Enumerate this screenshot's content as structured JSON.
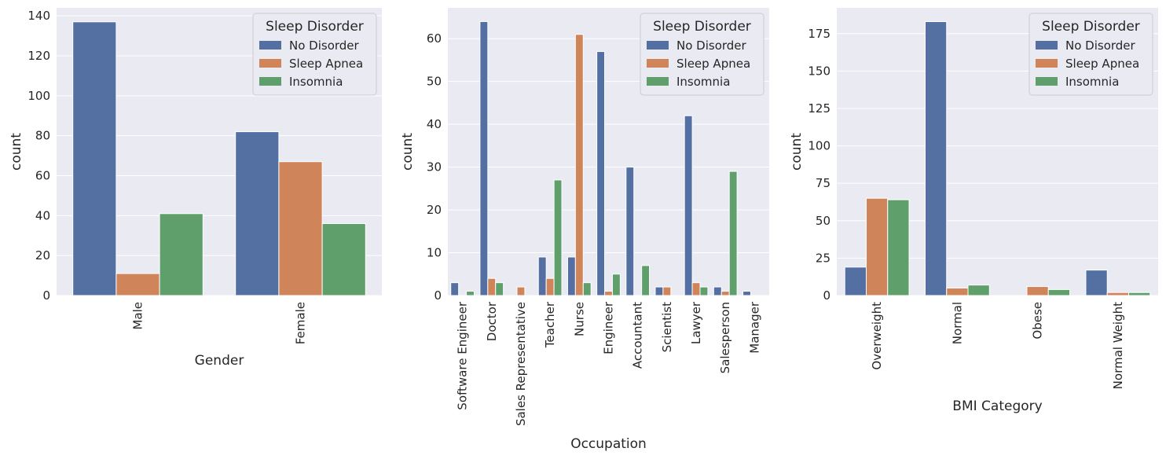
{
  "colors": {
    "No Disorder": "#5470a3",
    "Sleep Apnea": "#d0845a",
    "Insomnia": "#5e9f6b"
  },
  "chart_data": [
    {
      "type": "bar",
      "xlabel": "Gender",
      "ylabel": "count",
      "ylim": [
        0,
        144
      ],
      "yticks": [
        0,
        20,
        40,
        60,
        80,
        100,
        120,
        140
      ],
      "categories": [
        "Male",
        "Female"
      ],
      "legend": {
        "title": "Sleep Disorder",
        "placement": "top-right"
      },
      "grid": true,
      "series": [
        {
          "name": "No Disorder",
          "values": [
            137,
            82
          ]
        },
        {
          "name": "Sleep Apnea",
          "values": [
            11,
            67
          ]
        },
        {
          "name": "Insomnia",
          "values": [
            41,
            36
          ]
        }
      ]
    },
    {
      "type": "bar",
      "xlabel": "Occupation",
      "ylabel": "count",
      "ylim": [
        0,
        67.2
      ],
      "yticks": [
        0,
        10,
        20,
        30,
        40,
        50,
        60
      ],
      "categories": [
        "Software Engineer",
        "Doctor",
        "Sales Representative",
        "Teacher",
        "Nurse",
        "Engineer",
        "Accountant",
        "Scientist",
        "Lawyer",
        "Salesperson",
        "Manager"
      ],
      "legend": {
        "title": "Sleep Disorder",
        "placement": "top-right"
      },
      "grid": true,
      "series": [
        {
          "name": "No Disorder",
          "values": [
            3,
            64,
            0,
            9,
            9,
            57,
            30,
            2,
            42,
            2,
            1
          ]
        },
        {
          "name": "Sleep Apnea",
          "values": [
            0,
            4,
            2,
            4,
            61,
            1,
            0,
            2,
            3,
            1,
            0
          ]
        },
        {
          "name": "Insomnia",
          "values": [
            1,
            3,
            0,
            27,
            3,
            5,
            7,
            0,
            2,
            29,
            0
          ]
        }
      ]
    },
    {
      "type": "bar",
      "xlabel": "BMI Category",
      "ylabel": "count",
      "ylim": [
        0,
        192.2
      ],
      "yticks": [
        0,
        25,
        50,
        75,
        100,
        125,
        150,
        175
      ],
      "categories": [
        "Overweight",
        "Normal",
        "Obese",
        "Normal Weight"
      ],
      "legend": {
        "title": "Sleep Disorder",
        "placement": "top-right"
      },
      "grid": true,
      "series": [
        {
          "name": "No Disorder",
          "values": [
            19,
            183,
            0,
            17
          ]
        },
        {
          "name": "Sleep Apnea",
          "values": [
            65,
            5,
            6,
            2
          ]
        },
        {
          "name": "Insomnia",
          "values": [
            64,
            7,
            4,
            2
          ]
        }
      ]
    }
  ]
}
